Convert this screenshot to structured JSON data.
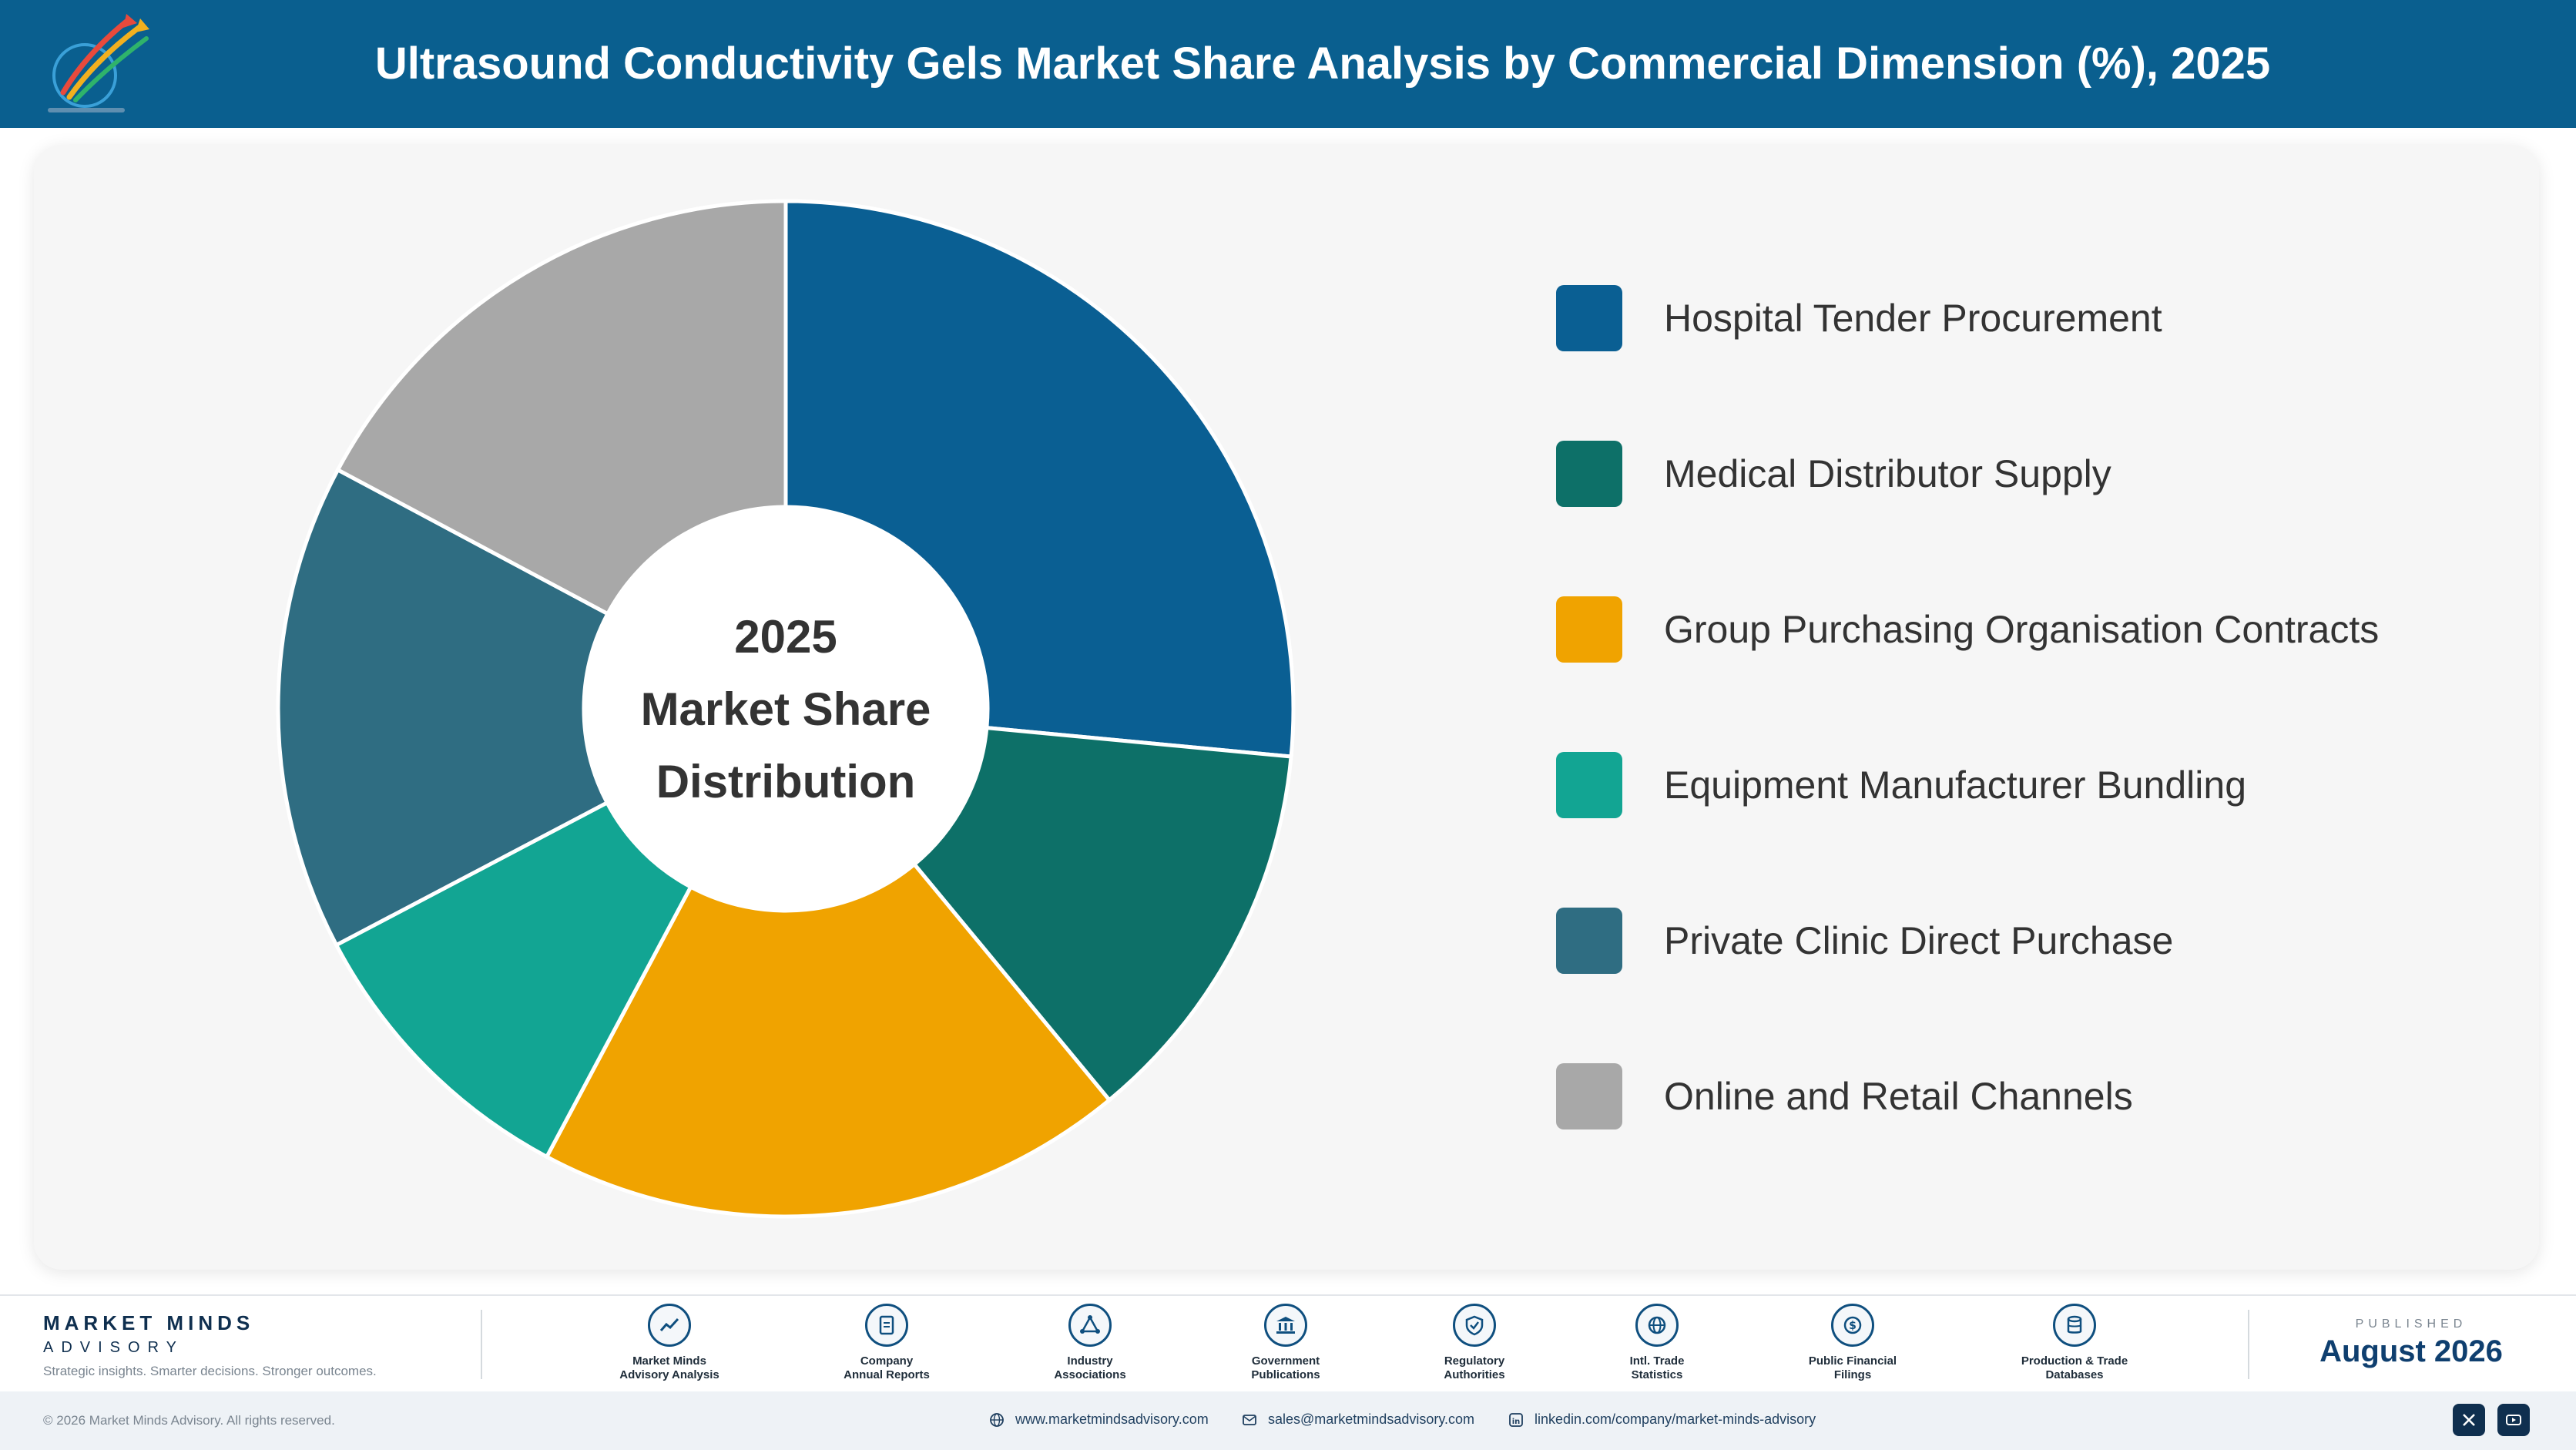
{
  "header": {
    "title": "Ultrasound Conductivity Gels Market Share Analysis by Commercial Dimension (%), 2025"
  },
  "chart_data": {
    "type": "pie",
    "style": "donut",
    "center_label": [
      "2025",
      "Market Share",
      "Distribution"
    ],
    "categories": [
      "Hospital Tender Procurement",
      "Medical Distributor Supply",
      "Group Purchasing Organisation Contracts",
      "Equipment Manufacturer Bundling",
      "Private Clinic Direct Purchase",
      "Online and Retail Channels"
    ],
    "values": [
      26.5,
      12.5,
      18.8,
      9.5,
      15.5,
      17.2
    ],
    "colors": [
      "#0a5f93",
      "#0d7068",
      "#f0a300",
      "#12a593",
      "#2f6d82",
      "#a8a8a8"
    ],
    "legend_position": "right"
  },
  "footer": {
    "brand_name": "MARKET MINDS",
    "brand_sub": "ADVISORY",
    "brand_tagline": "Strategic insights. Smarter decisions. Stronger outcomes.",
    "sources": [
      {
        "line1": "Market Minds",
        "line2": "Advisory Analysis",
        "icon": "chart-line-icon"
      },
      {
        "line1": "Company",
        "line2": "Annual Reports",
        "icon": "document-icon"
      },
      {
        "line1": "Industry",
        "line2": "Associations",
        "icon": "network-icon"
      },
      {
        "line1": "Government",
        "line2": "Publications",
        "icon": "building-icon"
      },
      {
        "line1": "Regulatory",
        "line2": "Authorities",
        "icon": "shield-icon"
      },
      {
        "line1": "Intl. Trade",
        "line2": "Statistics",
        "icon": "globe-icon"
      },
      {
        "line1": "Public Financial",
        "line2": "Filings",
        "icon": "coin-icon"
      },
      {
        "line1": "Production & Trade",
        "line2": "Databases",
        "icon": "database-icon"
      }
    ],
    "published_label": "PUBLISHED",
    "published_date": "August 2026"
  },
  "bottom_bar": {
    "copyright": "© 2026 Market Minds Advisory. All rights reserved.",
    "website": "www.marketmindsadvisory.com",
    "email": "sales@marketmindsadvisory.com",
    "linkedin": "linkedin.com/company/market-minds-advisory"
  }
}
